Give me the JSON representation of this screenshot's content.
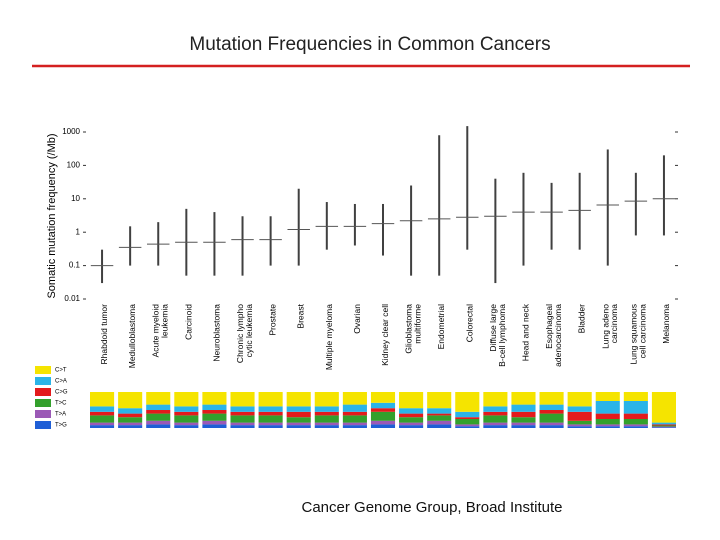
{
  "slide_title": "Mutation Frequencies in Common Cancers",
  "footer": "Cancer Genome Group, Broad Institute",
  "chart_data": [
    {
      "type": "strip",
      "y_label": "Somatic mutation frequency (/Mb)",
      "log": true,
      "ylim": [
        0.01,
        1000
      ],
      "yticks": [
        1000,
        100,
        10,
        1,
        0.1,
        0.01
      ],
      "categories": [
        "Rhabdoid tumor",
        "Medulloblastoma",
        "Acute myeloid\nleukemia",
        "Carcinoid",
        "Neuroblastoma",
        "Chronic lympho\ncytic leukemia",
        "Prostate",
        "Breast",
        "Multiple myeloma",
        "Ovarian",
        "Kidney clear cell",
        "Glioblastoma\nmultiforme",
        "Endometrial",
        "Colorectal",
        "Diffuse large\nB-cell lymphoma",
        "Head and neck",
        "Esophageal\nadenocarcinoma",
        "Bladder",
        "Lung adeno\ncarcinoma",
        "Lung squamous\ncell carcinoma",
        "Melanoma"
      ],
      "values": [
        0.1,
        0.35,
        0.44,
        0.5,
        0.5,
        0.6,
        0.6,
        1.2,
        1.5,
        1.5,
        1.8,
        2.2,
        2.5,
        2.8,
        3,
        4,
        4,
        4.5,
        6.5,
        8.5,
        10
      ],
      "low": [
        0.03,
        0.1,
        0.1,
        0.05,
        0.05,
        0.05,
        0.1,
        0.1,
        0.3,
        0.4,
        0.2,
        0.05,
        0.05,
        0.3,
        0.03,
        0.1,
        0.3,
        0.3,
        0.1,
        0.8,
        0.8
      ],
      "high": [
        0.3,
        1.5,
        2,
        5,
        4,
        3,
        3,
        20,
        8,
        7,
        7,
        25,
        800,
        1500,
        40,
        60,
        30,
        60,
        300,
        60,
        200
      ],
      "color": "#000000",
      "median_color": "#555555"
    },
    {
      "type": "stacked-bar",
      "ylim": [
        0,
        100
      ],
      "series": [
        {
          "name": "C>T",
          "color": "#f5e400",
          "values": [
            40,
            45,
            35,
            40,
            35,
            40,
            40,
            40,
            40,
            35,
            30,
            45,
            45,
            55,
            40,
            35,
            35,
            40,
            25,
            25,
            85
          ]
        },
        {
          "name": "C>A",
          "color": "#2ab4e8",
          "values": [
            15,
            15,
            15,
            15,
            15,
            15,
            15,
            15,
            15,
            20,
            15,
            15,
            15,
            15,
            15,
            20,
            15,
            15,
            35,
            35,
            5
          ]
        },
        {
          "name": "C>G",
          "color": "#e31a1c",
          "values": [
            10,
            10,
            10,
            10,
            10,
            10,
            10,
            15,
            10,
            10,
            10,
            10,
            5,
            5,
            10,
            15,
            10,
            25,
            15,
            15,
            3
          ]
        },
        {
          "name": "T>C",
          "color": "#33a02c",
          "values": [
            20,
            15,
            20,
            20,
            20,
            20,
            20,
            15,
            20,
            20,
            25,
            15,
            15,
            15,
            20,
            15,
            25,
            10,
            15,
            15,
            3
          ]
        },
        {
          "name": "T>A",
          "color": "#9b59b6",
          "values": [
            7,
            7,
            10,
            7,
            10,
            7,
            7,
            7,
            7,
            7,
            10,
            7,
            10,
            5,
            7,
            7,
            7,
            5,
            5,
            5,
            2
          ]
        },
        {
          "name": "T>G",
          "color": "#1f5fd6",
          "values": [
            8,
            8,
            10,
            8,
            10,
            8,
            8,
            8,
            8,
            8,
            10,
            8,
            10,
            5,
            8,
            8,
            8,
            5,
            5,
            5,
            2
          ]
        }
      ]
    }
  ]
}
